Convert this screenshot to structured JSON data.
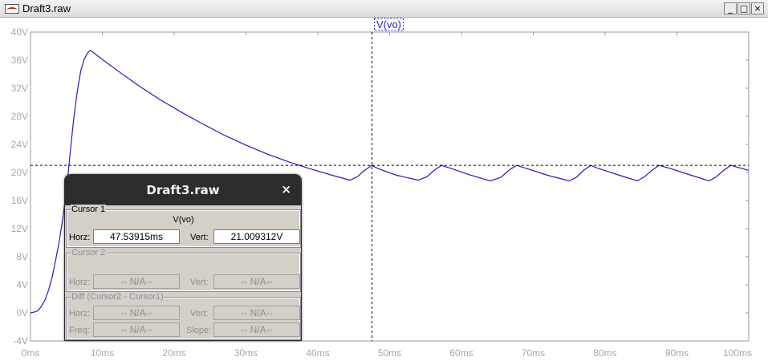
{
  "window": {
    "title": "Draft3.raw",
    "minimize_glyph": "_",
    "maximize_glyph": "□",
    "close_glyph": "×"
  },
  "plot": {
    "trace_label": "V(vo)",
    "trace_color": "#1f1fbf",
    "y_ticks": [
      "40V",
      "36V",
      "32V",
      "28V",
      "24V",
      "20V",
      "16V",
      "12V",
      "8V",
      "4V",
      "0V",
      "-4V"
    ],
    "x_ticks": [
      "0ms",
      "10ms",
      "20ms",
      "30ms",
      "40ms",
      "50ms",
      "60ms",
      "70ms",
      "80ms",
      "90ms",
      "100ms"
    ]
  },
  "chart_data": {
    "type": "line",
    "xlim": [
      0,
      100
    ],
    "ylim": [
      -4,
      40
    ],
    "series": [
      {
        "name": "V(vo)",
        "x": [
          0,
          0.5,
          1,
          1.5,
          2,
          2.5,
          3,
          3.5,
          4,
          4.5,
          5,
          5.5,
          6,
          6.5,
          7,
          7.5,
          8,
          8.3,
          8.5,
          9,
          10,
          12,
          15,
          18,
          21,
          24,
          27,
          30,
          33,
          36,
          39,
          42,
          44.5,
          45.5,
          46.5,
          47.5,
          48.5,
          51,
          54,
          55.2,
          56.2,
          57.2,
          58.5,
          61,
          64,
          65.5,
          66.7,
          67.7,
          69,
          72,
          75,
          76,
          77,
          78,
          79,
          82,
          84.5,
          85.5,
          86.5,
          87.5,
          89,
          92,
          94.5,
          95.5,
          96.5,
          97.5,
          99,
          100
        ],
        "y": [
          0,
          0.1,
          0.3,
          0.9,
          1.8,
          3.2,
          5.0,
          7.5,
          10.2,
          13.5,
          17.5,
          22.5,
          27.5,
          31.5,
          34.5,
          36.2,
          37.1,
          37.4,
          37.3,
          36.9,
          36.1,
          34.6,
          32.4,
          30.4,
          28.6,
          26.9,
          25.3,
          23.9,
          22.6,
          21.5,
          20.5,
          19.6,
          18.9,
          19.4,
          20.3,
          21.0,
          20.5,
          19.6,
          18.9,
          19.4,
          20.3,
          21.0,
          20.6,
          19.7,
          18.8,
          19.3,
          20.4,
          21.0,
          20.6,
          19.6,
          18.8,
          19.3,
          20.3,
          21.0,
          20.6,
          19.6,
          18.8,
          19.4,
          20.3,
          21.0,
          20.6,
          19.6,
          18.8,
          19.4,
          20.3,
          21.0,
          20.6,
          20.3
        ]
      }
    ],
    "cursor": {
      "x": 47.53915,
      "y": 21.009312
    },
    "x_unit": "ms",
    "y_unit": "V",
    "grid": false
  },
  "dialog": {
    "title": "Draft3.raw",
    "close_glyph": "×",
    "cursor1": {
      "group_label": "Cursor 1",
      "trace": "V(vo)",
      "horz_label": "Horz:",
      "horz_value": "47.53915ms",
      "vert_label": "Vert:",
      "vert_value": "21.009312V"
    },
    "cursor2": {
      "group_label": "Cursor 2",
      "horz_label": "Horz:",
      "horz_value": "-- N/A--",
      "vert_label": "Vert:",
      "vert_value": "-- N/A--"
    },
    "diff": {
      "group_label": "Diff (Cursor2 - Cursor1)",
      "horz_label": "Horz:",
      "horz_value": "-- N/A--",
      "vert_label": "Vert:",
      "vert_value": "-- N/A--",
      "freq_label": "Freq:",
      "freq_value": "-- N/A--",
      "slope_label": "Slope:",
      "slope_value": "-- N/A--"
    }
  }
}
